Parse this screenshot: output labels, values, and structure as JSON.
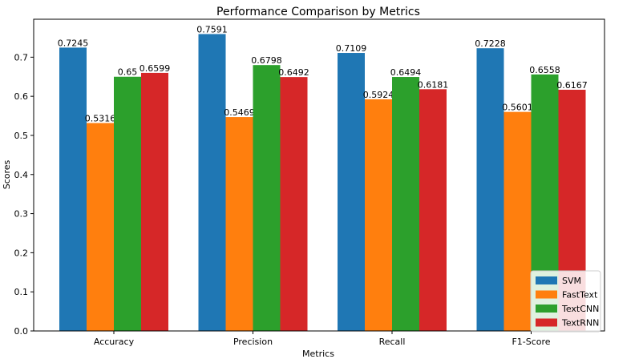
{
  "chart_data": {
    "type": "bar",
    "title": "Performance Comparison by Metrics",
    "xlabel": "Metrics",
    "ylabel": "Scores",
    "categories": [
      "Accuracy",
      "Precision",
      "Recall",
      "F1-Score"
    ],
    "series": [
      {
        "name": "SVM",
        "color": "#1f77b4",
        "values": [
          0.7245,
          0.7591,
          0.7109,
          0.7228
        ]
      },
      {
        "name": "FastText",
        "color": "#ff7f0e",
        "values": [
          0.5316,
          0.5469,
          0.5924,
          0.5601
        ]
      },
      {
        "name": "TextCNN",
        "color": "#2ca02c",
        "values": [
          0.65,
          0.6798,
          0.6494,
          0.6558
        ]
      },
      {
        "name": "TextRNN",
        "color": "#d62728",
        "values": [
          0.6599,
          0.6492,
          0.6181,
          0.6167
        ]
      }
    ],
    "ylim": [
      0,
      0.797
    ],
    "yticks": [
      0.0,
      0.1,
      0.2,
      0.3,
      0.4,
      0.5,
      0.6,
      0.7
    ],
    "ytick_labels": [
      "0.0",
      "0.1",
      "0.2",
      "0.3",
      "0.4",
      "0.5",
      "0.6",
      "0.7"
    ],
    "legend_position": "lower-right",
    "grid": false
  }
}
